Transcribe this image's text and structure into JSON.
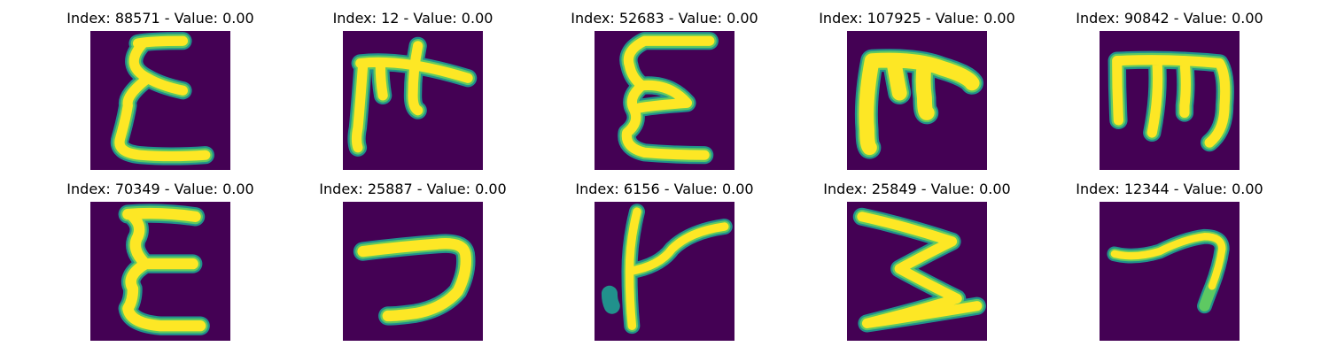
{
  "figure": {
    "colors": {
      "background": "#440154",
      "stroke_outer": "#21918c",
      "stroke_mid": "#5ec962",
      "stroke_core": "#fde725"
    },
    "panels": [
      {
        "title": "Index: 88571 - Value: 0.00",
        "glyph": "sigma-curly-character"
      },
      {
        "title": "Index: 12 - Value: 0.00",
        "glyph": "double-hook-character"
      },
      {
        "title": "Index: 52683 - Value: 0.00",
        "glyph": "epsilon-like-character"
      },
      {
        "title": "Index: 107925 - Value: 0.00",
        "glyph": "bold-hook-character"
      },
      {
        "title": "Index: 90842 - Value: 0.00",
        "glyph": "trident-character"
      },
      {
        "title": "Index: 70349 - Value: 0.00",
        "glyph": "sigma-curly-character"
      },
      {
        "title": "Index: 25887 - Value: 0.00",
        "glyph": "hook-bowl-character"
      },
      {
        "title": "Index: 6156 - Value: 0.00",
        "glyph": "y-branch-character"
      },
      {
        "title": "Index: 25849 - Value: 0.00",
        "glyph": "zigzag-sigma-character"
      },
      {
        "title": "Index: 12344 - Value: 0.00",
        "glyph": "seven-hook-character"
      }
    ]
  }
}
